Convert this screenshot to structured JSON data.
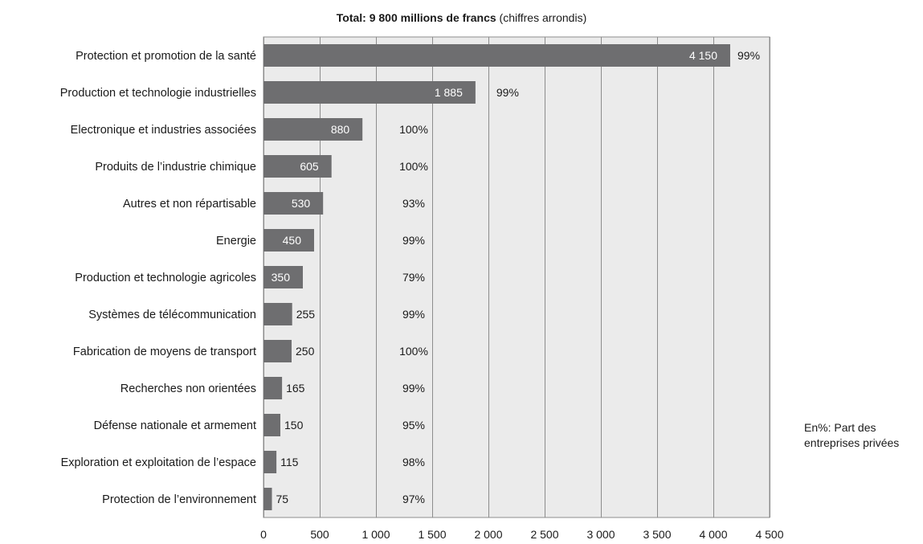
{
  "chart_data": {
    "type": "bar",
    "orientation": "horizontal",
    "title_bold": "Total: 9 800 millions de francs",
    "title_rest": " (chiffres arrondis)",
    "categories": [
      "Protection et promotion de la santé",
      "Production et technologie industrielles",
      "Electronique et industries associées",
      "Produits de l’industrie chimique",
      "Autres et non répartisable",
      "Energie",
      "Production et technologie agricoles",
      "Systèmes de télécommunication",
      "Fabrication de moyens de transport",
      "Recherches non orientées",
      "Défense nationale et armement",
      "Exploration et exploitation de l’espace",
      "Protection de l’environnement"
    ],
    "values": [
      4150,
      1885,
      880,
      605,
      530,
      450,
      350,
      255,
      250,
      165,
      150,
      115,
      75
    ],
    "value_labels": [
      "4 150",
      "1 885",
      "880",
      "605",
      "530",
      "450",
      "350",
      "255",
      "250",
      "165",
      "150",
      "115",
      "75"
    ],
    "percent_labels": [
      "99%",
      "99%",
      "100%",
      "100%",
      "93%",
      "99%",
      "79%",
      "99%",
      "100%",
      "99%",
      "95%",
      "98%",
      "97%"
    ],
    "xlim": [
      0,
      4500
    ],
    "xticks": [
      0,
      500,
      1000,
      1500,
      2000,
      2500,
      3000,
      3500,
      4000,
      4500
    ],
    "xtick_labels": [
      "0",
      "500",
      "1 000",
      "1 500",
      "2 000",
      "2 500",
      "3 000",
      "3 500",
      "4 000",
      "4 500"
    ],
    "grid": true,
    "legend_note": [
      "En%: Part des",
      "entreprises privées"
    ],
    "colors": {
      "bar": "#6e6e70",
      "plot_bg": "#ebebeb",
      "grid": "#8c8c8c"
    }
  }
}
